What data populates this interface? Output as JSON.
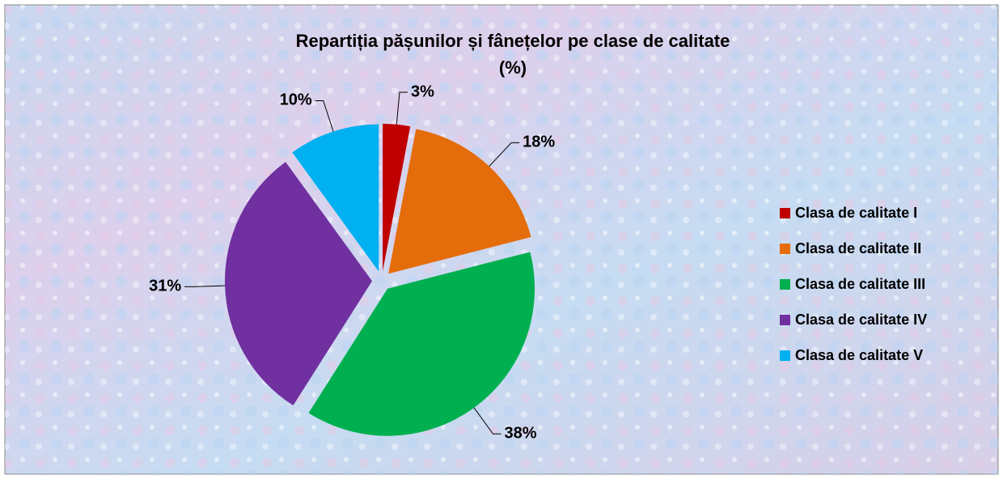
{
  "chart_data": {
    "type": "pie",
    "title": "Repartiția pășunilor și fânețelor pe clase de calitate",
    "subtitle": "(%)",
    "categories": [
      "Clasa de calitate I",
      "Clasa de calitate II",
      "Clasa de calitate III",
      "Clasa de calitate IV",
      "Clasa de calitate V"
    ],
    "values": [
      3,
      18,
      38,
      31,
      10
    ],
    "value_labels": [
      "3%",
      "18%",
      "38%",
      "31%",
      "10%"
    ],
    "colors": [
      "#c00000",
      "#e46c0a",
      "#00b050",
      "#7030a0",
      "#00b0f0"
    ],
    "legend": "right"
  }
}
